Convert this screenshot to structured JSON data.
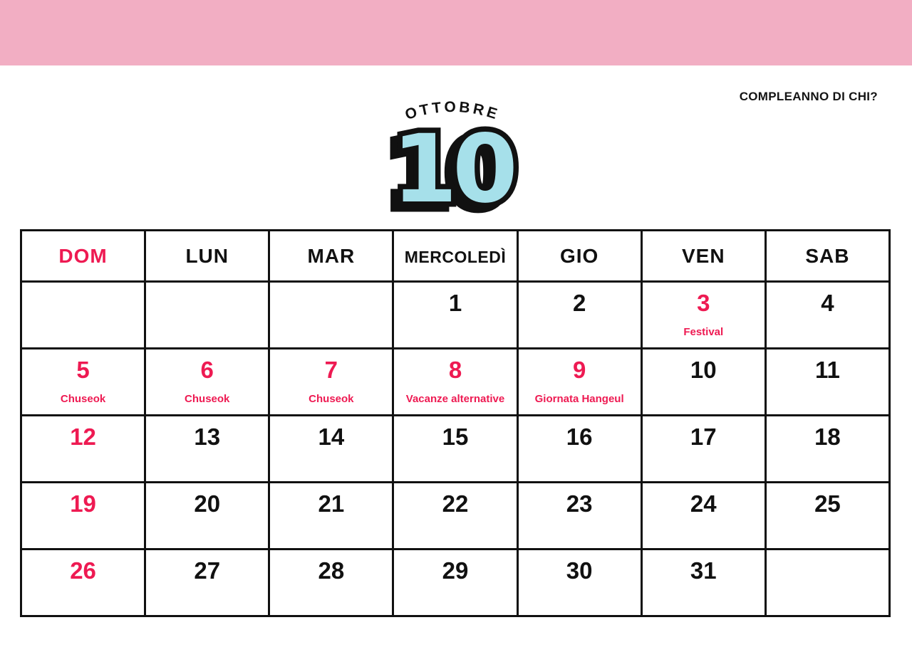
{
  "colors": {
    "banner_pink": "#f2aec3",
    "accent_red": "#ee1a52",
    "number_blue": "#a6e0ea",
    "ink_black": "#111111"
  },
  "header": {
    "corner_label": "COMPLEANNO DI CHI?",
    "month_name": "OTTOBRE",
    "month_number": "10"
  },
  "calendar": {
    "day_headers": [
      {
        "label": "DOM",
        "red": true
      },
      {
        "label": "LUN",
        "red": false
      },
      {
        "label": "MAR",
        "red": false
      },
      {
        "label": "MERCOLEDÌ",
        "red": false
      },
      {
        "label": "GIO",
        "red": false
      },
      {
        "label": "VEN",
        "red": false
      },
      {
        "label": "SAB",
        "red": false
      }
    ],
    "weeks": [
      [
        {
          "day": "",
          "event": "",
          "red": false
        },
        {
          "day": "",
          "event": "",
          "red": false
        },
        {
          "day": "",
          "event": "",
          "red": false
        },
        {
          "day": "1",
          "event": "",
          "red": false
        },
        {
          "day": "2",
          "event": "",
          "red": false
        },
        {
          "day": "3",
          "event": "Festival",
          "red": true
        },
        {
          "day": "4",
          "event": "",
          "red": false
        }
      ],
      [
        {
          "day": "5",
          "event": "Chuseok",
          "red": true
        },
        {
          "day": "6",
          "event": "Chuseok",
          "red": true
        },
        {
          "day": "7",
          "event": "Chuseok",
          "red": true
        },
        {
          "day": "8",
          "event": "Vacanze alternative",
          "red": true
        },
        {
          "day": "9",
          "event": "Giornata Hangeul",
          "red": true
        },
        {
          "day": "10",
          "event": "",
          "red": false
        },
        {
          "day": "11",
          "event": "",
          "red": false
        }
      ],
      [
        {
          "day": "12",
          "event": "",
          "red": true
        },
        {
          "day": "13",
          "event": "",
          "red": false
        },
        {
          "day": "14",
          "event": "",
          "red": false
        },
        {
          "day": "15",
          "event": "",
          "red": false
        },
        {
          "day": "16",
          "event": "",
          "red": false
        },
        {
          "day": "17",
          "event": "",
          "red": false
        },
        {
          "day": "18",
          "event": "",
          "red": false
        }
      ],
      [
        {
          "day": "19",
          "event": "",
          "red": true
        },
        {
          "day": "20",
          "event": "",
          "red": false
        },
        {
          "day": "21",
          "event": "",
          "red": false
        },
        {
          "day": "22",
          "event": "",
          "red": false
        },
        {
          "day": "23",
          "event": "",
          "red": false
        },
        {
          "day": "24",
          "event": "",
          "red": false
        },
        {
          "day": "25",
          "event": "",
          "red": false
        }
      ],
      [
        {
          "day": "26",
          "event": "",
          "red": true
        },
        {
          "day": "27",
          "event": "",
          "red": false
        },
        {
          "day": "28",
          "event": "",
          "red": false
        },
        {
          "day": "29",
          "event": "",
          "red": false
        },
        {
          "day": "30",
          "event": "",
          "red": false
        },
        {
          "day": "31",
          "event": "",
          "red": false
        },
        {
          "day": "",
          "event": "",
          "red": false
        }
      ]
    ]
  }
}
